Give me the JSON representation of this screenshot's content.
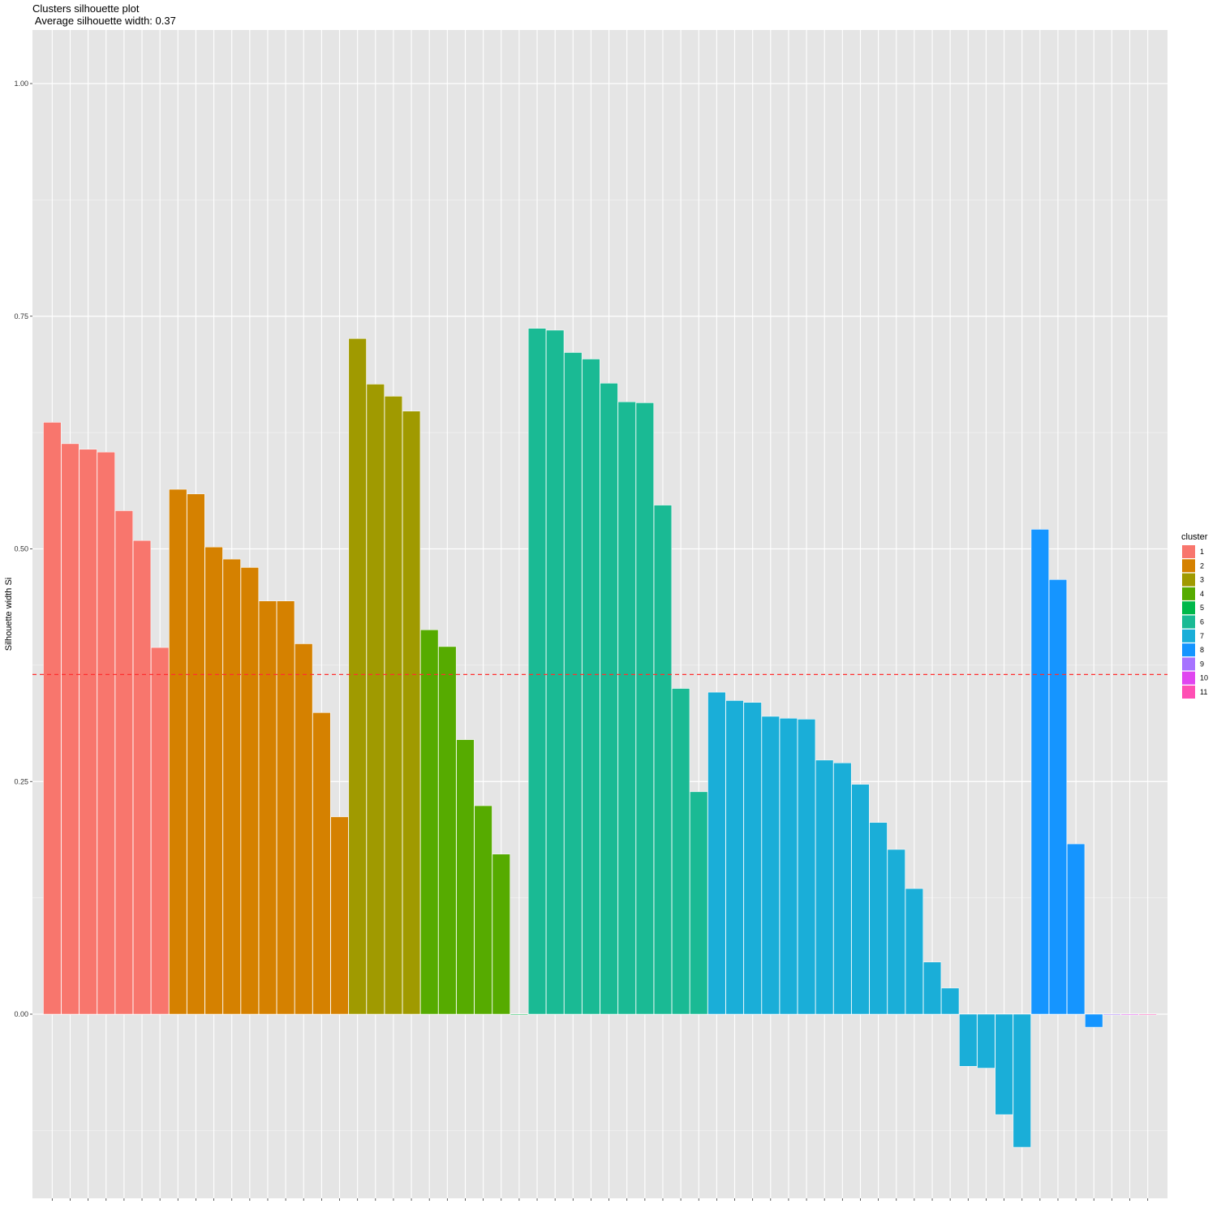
{
  "chart_data": {
    "type": "bar",
    "title": "Clusters silhouette plot",
    "subtitle": " Average silhouette width: 0.37",
    "xlabel": "",
    "ylabel": "Silhouette width Si",
    "ylim": [
      -0.16,
      1.06
    ],
    "yticks": [
      "1.00",
      "0.75",
      "0.50",
      "0.25",
      "0.00"
    ],
    "ytick_values": [
      1.0,
      0.75,
      0.5,
      0.25,
      0.0
    ],
    "grid": true,
    "average_silhouette_width": 0.37,
    "legend": {
      "title": "cluster",
      "placement": "right",
      "entries": [
        "1",
        "2",
        "3",
        "4",
        "5",
        "6",
        "7",
        "8",
        "9",
        "10",
        "11"
      ]
    },
    "colors": {
      "1": "#F8766D",
      "2": "#D89000",
      "3": "#A3A500",
      "4": "#39B600",
      "5": "#00BF7D",
      "6": "#00BFC4",
      "7": "#00B0F6",
      "8": "#9590FF",
      "9": "#E76BF3",
      "10": "#FF62BC",
      "11": "#FF62BC"
    },
    "bar_colors": {
      "1": "#F8766D",
      "2": "#D58100",
      "3": "#A09A00",
      "4": "#56AB00",
      "5": "#00B84A",
      "6": "#1ABA94",
      "7": "#1AAED8",
      "8": "#1595FF",
      "9": "#A673FF",
      "10": "#E046F0",
      "11": "#FF4FB4"
    },
    "reference_line": {
      "value": 0.365,
      "style": "dashed",
      "color": "#FF2F2F"
    },
    "clusters": [
      {
        "cluster": "1",
        "values": [
          0.636,
          0.613,
          0.607,
          0.604,
          0.541,
          0.509,
          0.394
        ]
      },
      {
        "cluster": "2",
        "values": [
          0.564,
          0.559,
          0.502,
          0.489,
          0.48,
          0.444,
          0.444,
          0.398,
          0.324,
          0.212
        ]
      },
      {
        "cluster": "3",
        "values": [
          0.726,
          0.677,
          0.664,
          0.648
        ]
      },
      {
        "cluster": "4",
        "values": [
          0.413,
          0.395,
          0.295,
          0.224,
          0.172
        ]
      },
      {
        "cluster": "5",
        "values": [
          0.0
        ]
      },
      {
        "cluster": "6",
        "values": [
          0.737,
          0.735,
          0.711,
          0.704,
          0.678,
          0.658,
          0.657,
          0.547,
          0.35,
          0.239
        ]
      },
      {
        "cluster": "7",
        "values": [
          0.346,
          0.337,
          0.335,
          0.32,
          0.318,
          0.317,
          0.273,
          0.27,
          0.247,
          0.206,
          0.177,
          0.135,
          0.056,
          0.028,
          -0.056,
          -0.058,
          -0.108,
          -0.143
        ]
      },
      {
        "cluster": "8",
        "values": [
          0.521,
          0.467,
          0.183,
          -0.014
        ]
      },
      {
        "cluster": "9",
        "values": [
          0.0
        ]
      },
      {
        "cluster": "10",
        "values": [
          0.0
        ]
      },
      {
        "cluster": "11",
        "values": [
          0.0
        ]
      }
    ]
  }
}
